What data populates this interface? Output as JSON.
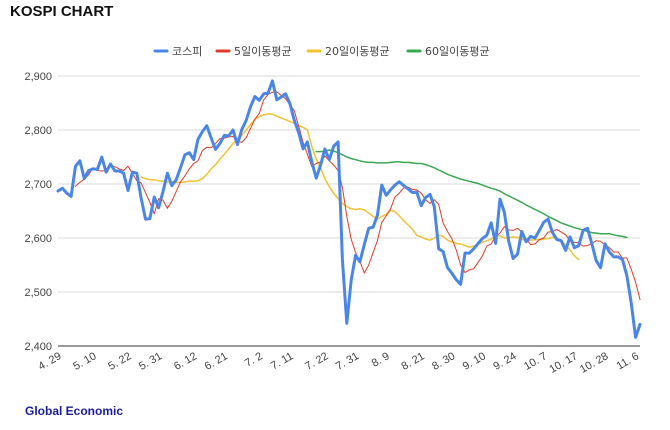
{
  "header": {
    "title": "KOSPI CHART"
  },
  "footer": {
    "source": "Global Economic"
  },
  "chart_data": {
    "type": "line",
    "title": "KOSPI CHART",
    "xlabel": "",
    "ylabel": "",
    "ylim": [
      2400,
      2900
    ],
    "yticks": [
      2400,
      2500,
      2600,
      2700,
      2800,
      2900
    ],
    "ytick_labels": [
      "2,400",
      "2,500",
      "2,600",
      "2,700",
      "2,800",
      "2,900"
    ],
    "grid": true,
    "legend_position": "top",
    "xtick_labels": [
      "4. 29",
      "5. 10",
      "5. 22",
      "5. 31",
      "6. 12",
      "6. 21",
      "7. 2",
      "7. 11",
      "7. 22",
      "7. 31",
      "8. 9",
      "8. 21",
      "8. 30",
      "9. 10",
      "9. 24",
      "10. 7",
      "10. 17",
      "10. 28",
      "11. 6"
    ],
    "xtick_index": [
      0,
      8,
      16,
      23,
      31,
      38,
      46,
      53,
      61,
      68,
      75,
      83,
      90,
      97,
      104,
      111,
      118,
      125,
      132
    ],
    "series": [
      {
        "name": "코스피",
        "color": "#4a86e8",
        "width": 3,
        "start_index": 0,
        "values": [
          2687,
          2692,
          2683,
          2677,
          2733,
          2743,
          2710,
          2725,
          2728,
          2727,
          2750,
          2722,
          2737,
          2724,
          2724,
          2720,
          2688,
          2722,
          2720,
          2674,
          2635,
          2636,
          2676,
          2656,
          2686,
          2720,
          2697,
          2708,
          2730,
          2754,
          2758,
          2745,
          2783,
          2797,
          2808,
          2785,
          2764,
          2775,
          2790,
          2789,
          2800,
          2773,
          2801,
          2818,
          2843,
          2862,
          2855,
          2867,
          2868,
          2891,
          2856,
          2861,
          2867,
          2849,
          2818,
          2795,
          2765,
          2778,
          2741,
          2711,
          2735,
          2765,
          2745,
          2770,
          2778,
          2560,
          2442,
          2522,
          2568,
          2556,
          2588,
          2618,
          2620,
          2642,
          2698,
          2679,
          2689,
          2698,
          2704,
          2697,
          2691,
          2684,
          2685,
          2660,
          2675,
          2681,
          2658,
          2580,
          2575,
          2545,
          2535,
          2523,
          2514,
          2572,
          2572,
          2580,
          2590,
          2599,
          2605,
          2628,
          2590,
          2672,
          2648,
          2594,
          2562,
          2570,
          2612,
          2593,
          2603,
          2600,
          2614,
          2629,
          2635,
          2610,
          2597,
          2595,
          2577,
          2602,
          2582,
          2586,
          2614,
          2618,
          2589,
          2558,
          2545,
          2589,
          2574,
          2565,
          2565,
          2560,
          2530,
          2480,
          2416,
          2440
        ]
      },
      {
        "name": "5일이동평균",
        "color": "#e03b2a",
        "width": 1,
        "start_index": 4,
        "values": [
          2696,
          2703,
          2709,
          2717,
          2730,
          2725,
          2724,
          2725,
          2734,
          2732,
          2728,
          2725,
          2733,
          2720,
          2706,
          2702,
          2684,
          2666,
          2645,
          2673,
          2670,
          2655,
          2668,
          2686,
          2704,
          2715,
          2728,
          2738,
          2743,
          2762,
          2768,
          2767,
          2775,
          2784,
          2785,
          2787,
          2788,
          2780,
          2777,
          2786,
          2803,
          2820,
          2831,
          2856,
          2866,
          2870,
          2871,
          2864,
          2858,
          2847,
          2836,
          2807,
          2777,
          2755,
          2732,
          2738,
          2741,
          2752,
          2743,
          2735,
          2725,
          2694,
          2640,
          2598,
          2573,
          2557,
          2535,
          2550,
          2573,
          2595,
          2629,
          2641,
          2654,
          2676,
          2683,
          2693,
          2694,
          2690,
          2689,
          2683,
          2671,
          2664,
          2671,
          2662,
          2628,
          2612,
          2599,
          2578,
          2550,
          2536,
          2541,
          2543,
          2555,
          2567,
          2585,
          2589,
          2603,
          2609,
          2621,
          2615,
          2614,
          2618,
          2611,
          2598,
          2588,
          2589,
          2597,
          2600,
          2611,
          2612,
          2616,
          2611,
          2606,
          2595,
          2592,
          2591,
          2585,
          2586,
          2590,
          2595,
          2594,
          2587,
          2582,
          2574,
          2574,
          2563,
          2563,
          2542,
          2518,
          2486
        ]
      },
      {
        "name": "20일이동평균",
        "color": "#f1c232",
        "width": 1.5,
        "start_index": 19,
        "values": [
          2713,
          2710,
          2708,
          2708,
          2706,
          2705,
          2704,
          2704,
          2703,
          2703,
          2704,
          2705,
          2705,
          2706,
          2710,
          2718,
          2728,
          2736,
          2746,
          2755,
          2765,
          2775,
          2783,
          2790,
          2800,
          2810,
          2820,
          2825,
          2828,
          2830,
          2829,
          2826,
          2822,
          2819,
          2816,
          2812,
          2808,
          2805,
          2800,
          2770,
          2746,
          2730,
          2710,
          2695,
          2683,
          2673,
          2664,
          2658,
          2654,
          2653,
          2654,
          2652,
          2646,
          2640,
          2635,
          2640,
          2644,
          2651,
          2649,
          2641,
          2632,
          2624,
          2616,
          2605,
          2602,
          2598,
          2596,
          2600,
          2605,
          2603,
          2596,
          2593,
          2590,
          2589,
          2586,
          2583,
          2585,
          2588,
          2592,
          2595,
          2598,
          2603,
          2604,
          2600,
          2600,
          2602,
          2601,
          2598,
          2595,
          2596,
          2597,
          2597,
          2598,
          2599,
          2601,
          2600,
          2593,
          2588,
          2578,
          2567,
          2560
        ]
      },
      {
        "name": "60일이동평균",
        "color": "#3aa853",
        "width": 1.5,
        "start_index": 59,
        "values": [
          2760,
          2760,
          2761,
          2763,
          2761,
          2758,
          2754,
          2750,
          2747,
          2745,
          2743,
          2741,
          2740,
          2740,
          2739,
          2739,
          2739,
          2740,
          2741,
          2741,
          2740,
          2740,
          2739,
          2738,
          2738,
          2736,
          2733,
          2730,
          2726,
          2722,
          2718,
          2715,
          2712,
          2709,
          2707,
          2705,
          2703,
          2701,
          2698,
          2695,
          2692,
          2690,
          2687,
          2682,
          2678,
          2674,
          2670,
          2666,
          2661,
          2657,
          2653,
          2649,
          2645,
          2640,
          2636,
          2632,
          2628,
          2625,
          2622,
          2619,
          2617,
          2615,
          2612,
          2610,
          2609,
          2608,
          2608,
          2608,
          2606,
          2604,
          2603,
          2601
        ]
      }
    ]
  }
}
